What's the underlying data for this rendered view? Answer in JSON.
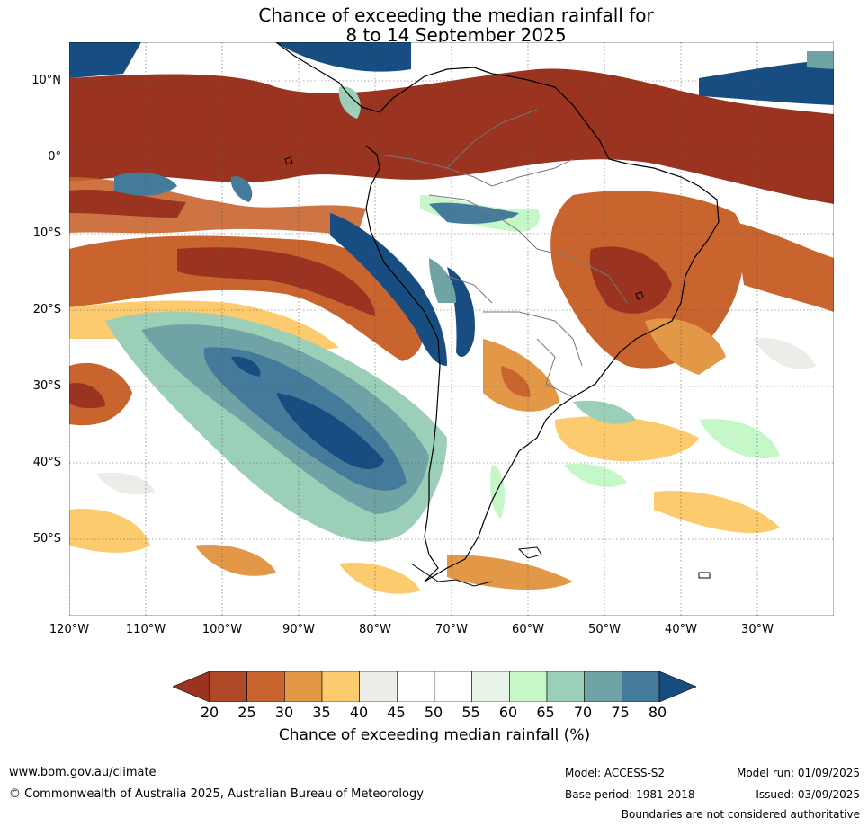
{
  "title": {
    "line1": "Chance of exceeding the median rainfall for",
    "line2": "8 to 14 September 2025"
  },
  "map": {
    "lat_labels": [
      "10°N",
      "0°",
      "10°S",
      "20°S",
      "30°S",
      "40°S",
      "50°S"
    ],
    "lon_labels": [
      "120°W",
      "110°W",
      "100°W",
      "90°W",
      "80°W",
      "70°W",
      "60°W",
      "50°W",
      "40°W",
      "30°W"
    ]
  },
  "colorbar": {
    "ticks": [
      "20",
      "25",
      "30",
      "35",
      "40",
      "45",
      "50",
      "55",
      "60",
      "65",
      "70",
      "75",
      "80"
    ],
    "colors": [
      "#9a3420",
      "#ae4a28",
      "#c9642e",
      "#e39847",
      "#fccb6e",
      "#eeece8",
      "#ffffff",
      "#ffffff",
      "#e8f4e8",
      "#c6f7c8",
      "#9bcfb8",
      "#6fa3a5",
      "#457b9a",
      "#174d80"
    ],
    "label": "Chance of exceeding median rainfall (%)"
  },
  "footer": {
    "website": "www.bom.gov.au/climate",
    "copyright": "© Commonwealth of Australia 2025, Australian Bureau of Meteorology",
    "model": "Model: ACCESS-S2",
    "base_period": "Base period: 1981-2018",
    "model_run": "Model run: 01/09/2025",
    "issued": "Issued: 03/09/2025",
    "disclaimer": "Boundaries are not considered authoritative"
  }
}
